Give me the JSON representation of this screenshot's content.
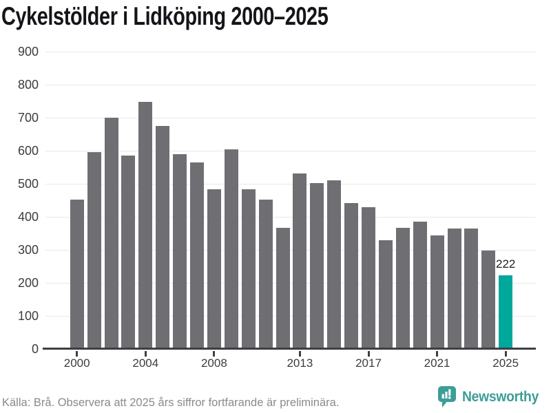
{
  "title": "Cykelstölder i Lidköping 2000–2025",
  "chart_data": {
    "type": "bar",
    "title": "Cykelstölder i Lidköping 2000–2025",
    "categories": [
      2000,
      2001,
      2002,
      2003,
      2004,
      2005,
      2006,
      2007,
      2008,
      2009,
      2010,
      2011,
      2012,
      2013,
      2014,
      2015,
      2016,
      2017,
      2018,
      2019,
      2020,
      2021,
      2022,
      2023,
      2024,
      2025
    ],
    "values": [
      452,
      595,
      700,
      585,
      747,
      675,
      590,
      565,
      483,
      605,
      483,
      452,
      367,
      532,
      502,
      510,
      441,
      430,
      330,
      367,
      385,
      343,
      365,
      365,
      297,
      222
    ],
    "highlight_category": 2025,
    "data_label": {
      "category": 2025,
      "text": "222"
    },
    "ylim": [
      0,
      900
    ],
    "yticks": [
      0,
      100,
      200,
      300,
      400,
      500,
      600,
      700,
      800,
      900
    ],
    "xticks": [
      2000,
      2004,
      2008,
      2013,
      2017,
      2021,
      2025
    ],
    "grid": "horizontal",
    "legend": "none",
    "colors": {
      "bar": "#6f6e73",
      "highlight": "#00a79b",
      "gridline": "#e8e8ea",
      "axis": "#3e3e42",
      "tick_label": "#3c3c40",
      "data_label": "#1d1d1f"
    }
  },
  "footer": {
    "source_note": "Källa: Brå. Observera att 2025 års siffror fortfarande är preliminära."
  },
  "branding": {
    "name": "Newsworthy",
    "icon": "newsworthy-speech-bubble-bar-chart-icon",
    "color": "#3b9e96"
  }
}
